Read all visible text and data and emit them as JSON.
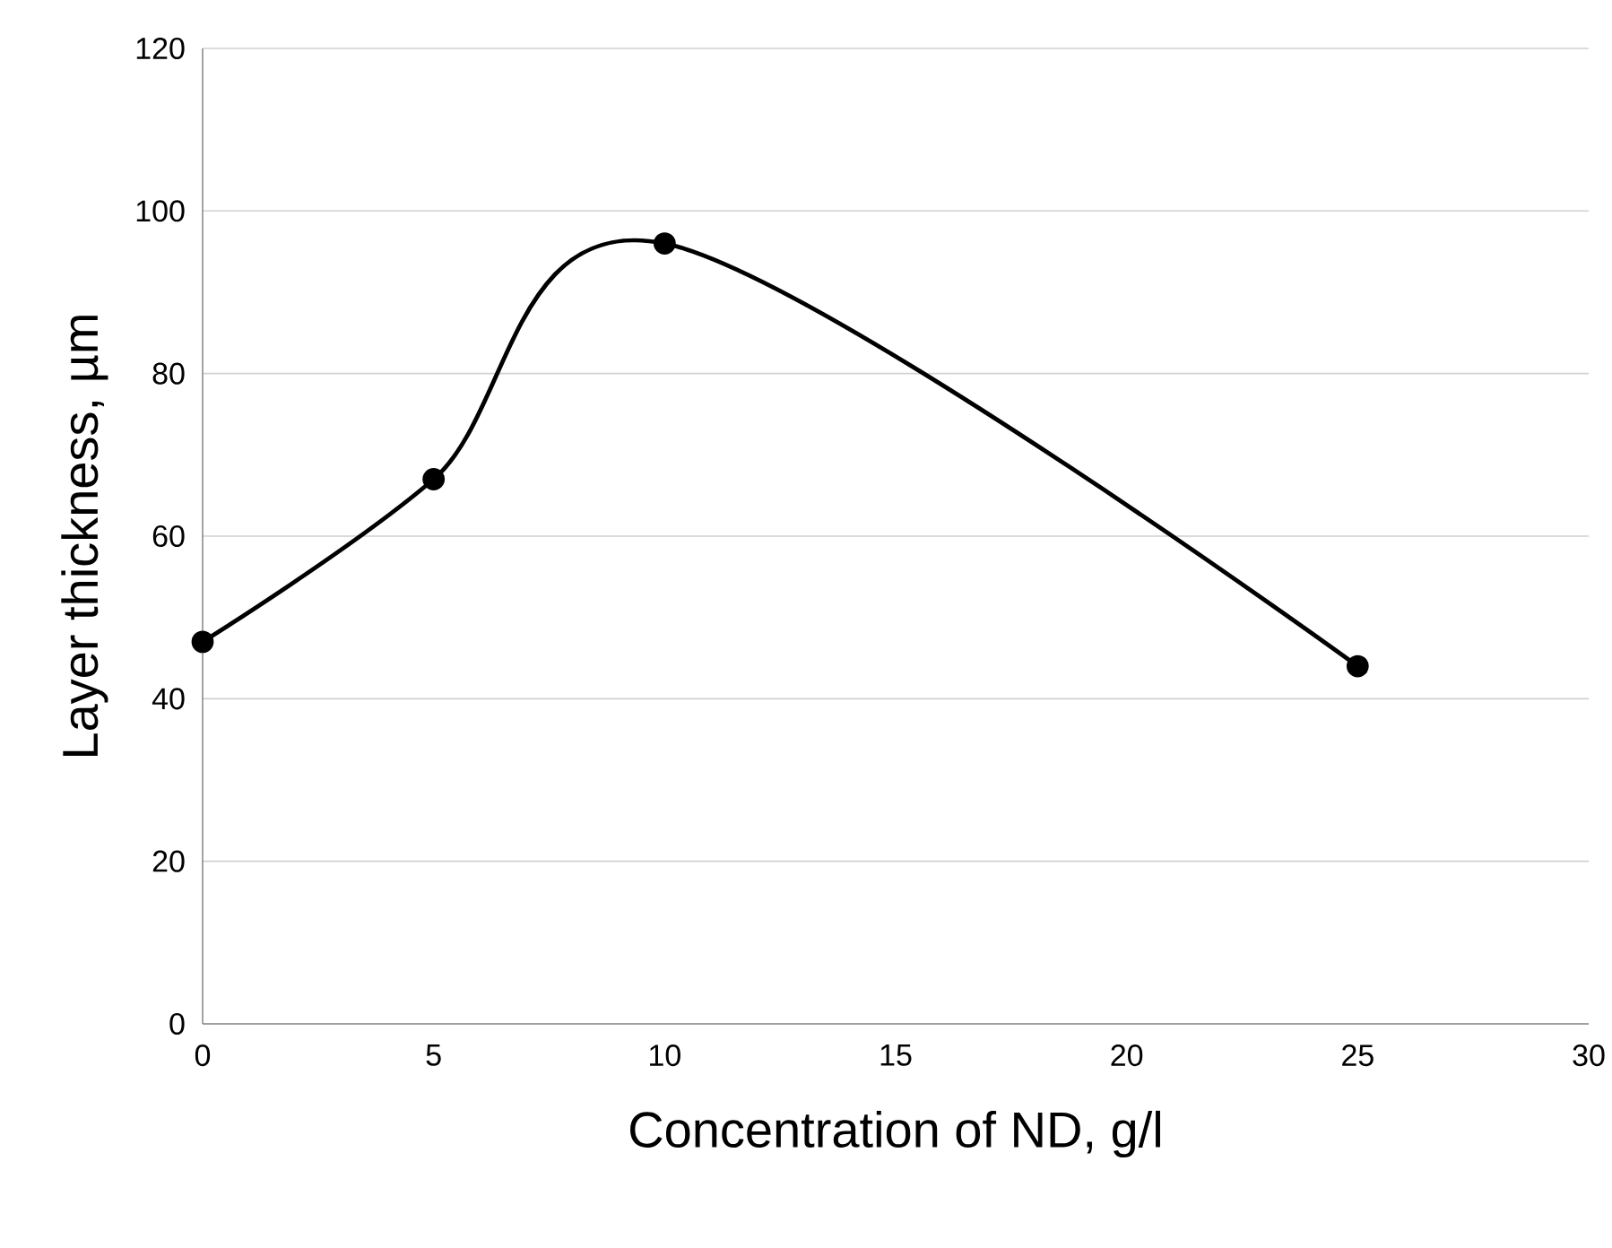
{
  "chart_data": {
    "type": "line",
    "xlabel": "Concentration of ND, g/l",
    "ylabel": "Layer thickness, µm",
    "x": [
      0,
      5,
      10,
      25
    ],
    "series": [
      {
        "color": "#000000",
        "values": [
          47,
          67,
          96,
          44
        ]
      }
    ],
    "xlim": [
      0,
      30
    ],
    "xticks": [
      0,
      5,
      10,
      15,
      20,
      25,
      30
    ],
    "ylim": [
      0,
      120
    ],
    "yticks": [
      0,
      20,
      40,
      60,
      80,
      100,
      120
    ],
    "grid": "y",
    "marker": "circle",
    "line_style": "solid"
  }
}
